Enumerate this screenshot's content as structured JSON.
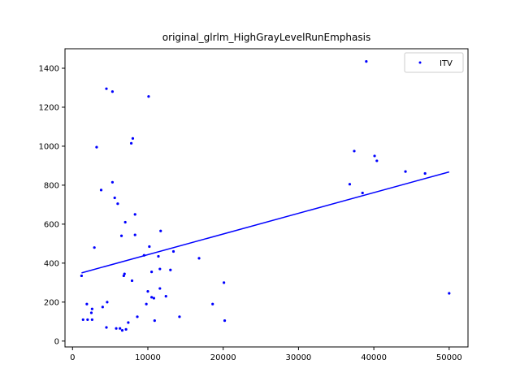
{
  "chart_data": {
    "type": "scatter",
    "title": "original_glrlm_HighGrayLevelRunEmphasis",
    "xlabel": "",
    "ylabel": "",
    "xlim": [
      -1000,
      52500
    ],
    "ylim": [
      -30,
      1500
    ],
    "x_ticks": [
      0,
      10000,
      20000,
      30000,
      40000,
      50000
    ],
    "x_tick_labels": [
      "0",
      "10000",
      "20000",
      "30000",
      "40000",
      "50000"
    ],
    "y_ticks": [
      0,
      200,
      400,
      600,
      800,
      1000,
      1200,
      1400
    ],
    "y_tick_labels": [
      "0",
      "200",
      "400",
      "600",
      "800",
      "1000",
      "1200",
      "1400"
    ],
    "legend_position": "top-right",
    "grid": false,
    "series": [
      {
        "name": "ITV",
        "color": "#0000ff",
        "marker": "point",
        "points": [
          {
            "x": 1200,
            "y": 335
          },
          {
            "x": 1400,
            "y": 110
          },
          {
            "x": 1900,
            "y": 190
          },
          {
            "x": 2000,
            "y": 110
          },
          {
            "x": 2500,
            "y": 145
          },
          {
            "x": 2600,
            "y": 165
          },
          {
            "x": 2600,
            "y": 110
          },
          {
            "x": 2900,
            "y": 480
          },
          {
            "x": 3200,
            "y": 995
          },
          {
            "x": 3800,
            "y": 775
          },
          {
            "x": 4000,
            "y": 175
          },
          {
            "x": 4500,
            "y": 1295
          },
          {
            "x": 4600,
            "y": 200
          },
          {
            "x": 4500,
            "y": 70
          },
          {
            "x": 5300,
            "y": 815
          },
          {
            "x": 5300,
            "y": 1280
          },
          {
            "x": 5600,
            "y": 735
          },
          {
            "x": 5800,
            "y": 65
          },
          {
            "x": 6000,
            "y": 705
          },
          {
            "x": 6300,
            "y": 65
          },
          {
            "x": 6500,
            "y": 540
          },
          {
            "x": 6600,
            "y": 55
          },
          {
            "x": 6800,
            "y": 335
          },
          {
            "x": 6900,
            "y": 345
          },
          {
            "x": 7000,
            "y": 610
          },
          {
            "x": 7100,
            "y": 60
          },
          {
            "x": 7400,
            "y": 95
          },
          {
            "x": 7800,
            "y": 1015
          },
          {
            "x": 7900,
            "y": 310
          },
          {
            "x": 8000,
            "y": 1040
          },
          {
            "x": 8300,
            "y": 650
          },
          {
            "x": 8300,
            "y": 545
          },
          {
            "x": 8600,
            "y": 125
          },
          {
            "x": 9500,
            "y": 440
          },
          {
            "x": 9800,
            "y": 190
          },
          {
            "x": 10000,
            "y": 255
          },
          {
            "x": 10100,
            "y": 1255
          },
          {
            "x": 10200,
            "y": 485
          },
          {
            "x": 10500,
            "y": 355
          },
          {
            "x": 10500,
            "y": 225
          },
          {
            "x": 10800,
            "y": 220
          },
          {
            "x": 10900,
            "y": 105
          },
          {
            "x": 11400,
            "y": 435
          },
          {
            "x": 11600,
            "y": 370
          },
          {
            "x": 11600,
            "y": 270
          },
          {
            "x": 11700,
            "y": 565
          },
          {
            "x": 12400,
            "y": 230
          },
          {
            "x": 13000,
            "y": 365
          },
          {
            "x": 13400,
            "y": 460
          },
          {
            "x": 14200,
            "y": 125
          },
          {
            "x": 16800,
            "y": 425
          },
          {
            "x": 18600,
            "y": 190
          },
          {
            "x": 20100,
            "y": 300
          },
          {
            "x": 20200,
            "y": 105
          },
          {
            "x": 36800,
            "y": 805
          },
          {
            "x": 37400,
            "y": 975
          },
          {
            "x": 38500,
            "y": 760
          },
          {
            "x": 39000,
            "y": 1435
          },
          {
            "x": 40100,
            "y": 950
          },
          {
            "x": 40400,
            "y": 925
          },
          {
            "x": 44200,
            "y": 870
          },
          {
            "x": 46800,
            "y": 860
          },
          {
            "x": 50000,
            "y": 245
          }
        ]
      }
    ],
    "fit_line": {
      "color": "#0000ff",
      "x": [
        1200,
        50000
      ],
      "y": [
        350,
        868
      ]
    }
  }
}
